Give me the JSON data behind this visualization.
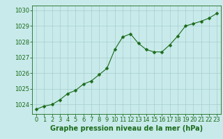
{
  "x": [
    0,
    1,
    2,
    3,
    4,
    5,
    6,
    7,
    8,
    9,
    10,
    11,
    12,
    13,
    14,
    15,
    16,
    17,
    18,
    19,
    20,
    21,
    22,
    23
  ],
  "y": [
    1023.7,
    1023.9,
    1024.0,
    1024.3,
    1024.7,
    1024.9,
    1025.3,
    1025.5,
    1025.9,
    1026.3,
    1027.5,
    1028.3,
    1028.5,
    1027.9,
    1027.5,
    1027.35,
    1027.35,
    1027.8,
    1028.35,
    1029.0,
    1029.15,
    1029.3,
    1029.5,
    1029.8
  ],
  "line_color": "#1a6b1a",
  "marker": "D",
  "marker_size": 2.5,
  "bg_color": "#c8eaea",
  "grid_color": "#a8cccc",
  "xlabel": "Graphe pression niveau de la mer (hPa)",
  "xlabel_color": "#1a6b1a",
  "xlabel_fontsize": 7,
  "tick_color": "#1a6b1a",
  "tick_fontsize": 6,
  "ylim": [
    1023.4,
    1030.3
  ],
  "yticks": [
    1024,
    1025,
    1026,
    1027,
    1028,
    1029,
    1030
  ],
  "xticks": [
    0,
    1,
    2,
    3,
    4,
    5,
    6,
    7,
    8,
    9,
    10,
    11,
    12,
    13,
    14,
    15,
    16,
    17,
    18,
    19,
    20,
    21,
    22,
    23
  ],
  "xlim": [
    -0.5,
    23.5
  ]
}
